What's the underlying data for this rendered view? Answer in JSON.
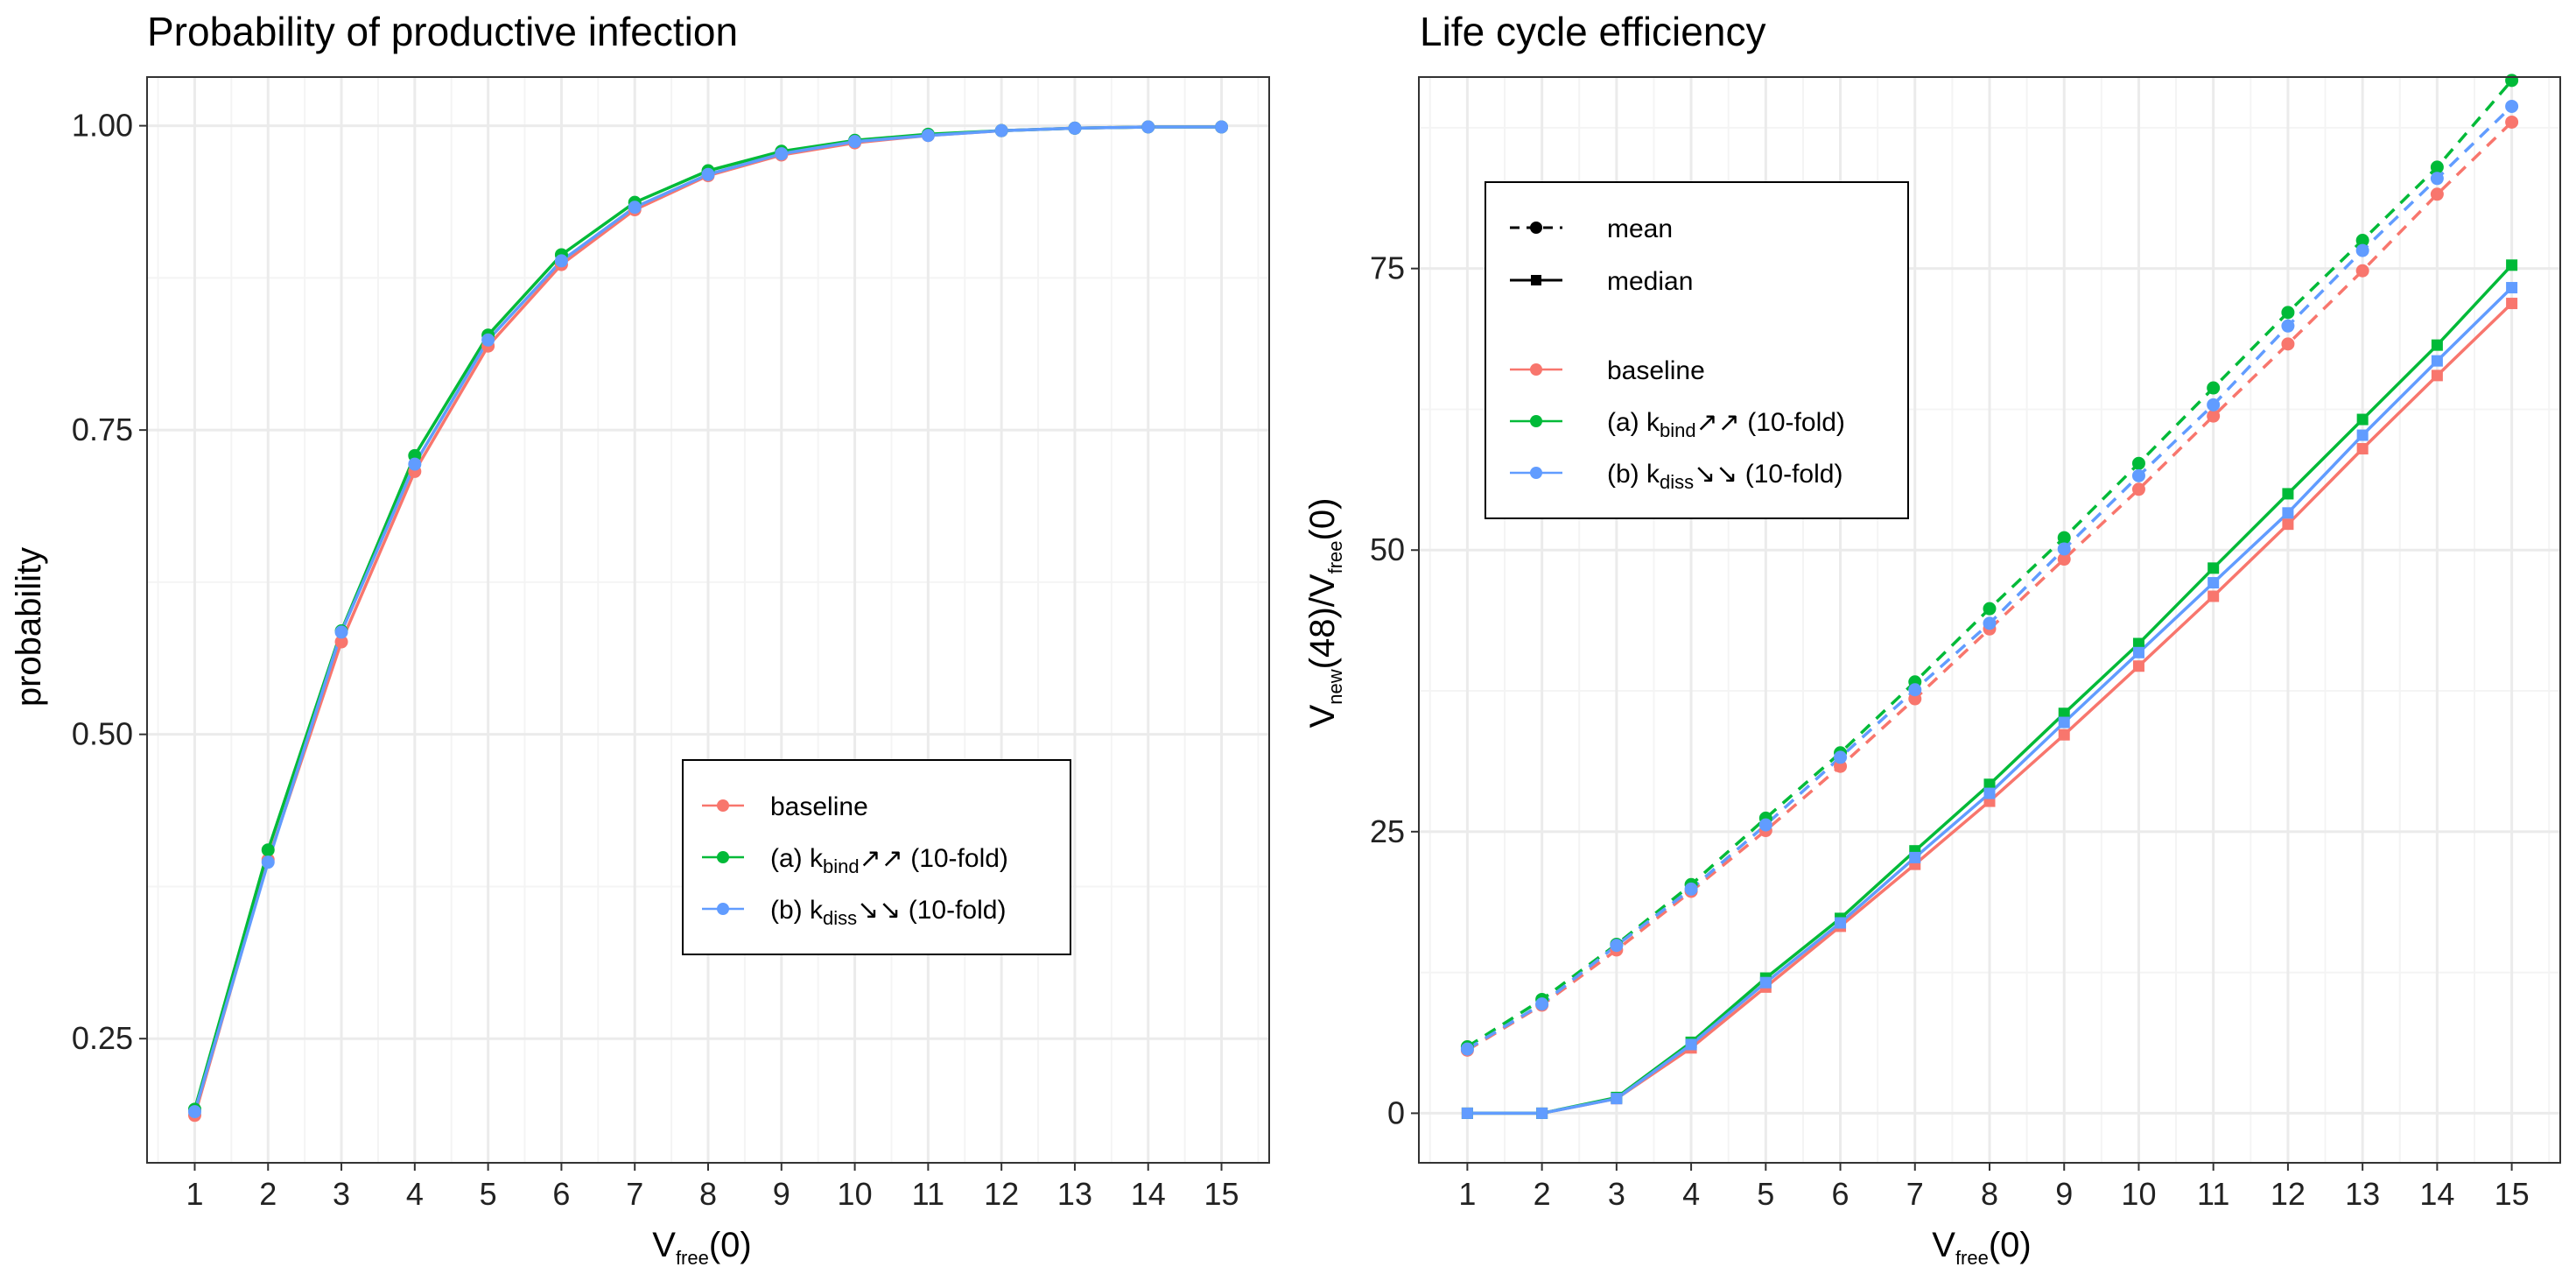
{
  "colors": {
    "baseline": "#F8766D",
    "kbind": "#00BA38",
    "kdiss": "#619CFF",
    "grid_major": "#EBEBEB",
    "grid_minor": "#F4F4F4",
    "panel_border": "#333333"
  },
  "chart_data": [
    {
      "type": "line",
      "title": "Probability of productive infection",
      "xlabel": {
        "main": "V",
        "sub": "free",
        "rest": "(0)"
      },
      "ylabel": "probability",
      "x": [
        1,
        2,
        3,
        4,
        5,
        6,
        7,
        8,
        9,
        10,
        11,
        12,
        13,
        14,
        15
      ],
      "xlim": [
        0.35,
        15.65
      ],
      "ylim": [
        0.148,
        1.04
      ],
      "yticks": [
        0.25,
        0.5,
        0.75,
        1.0
      ],
      "ytick_labels": [
        "0.25",
        "0.50",
        "0.75",
        "1.00"
      ],
      "grid": true,
      "legend": {
        "position": "center-right",
        "entries": [
          {
            "key": "baseline",
            "text": "baseline"
          },
          {
            "key": "kbind",
            "prefix": "(a) k",
            "sub": "bind",
            "suffix": "↗↗ (10-fold)"
          },
          {
            "key": "kdiss",
            "prefix": "(b) k",
            "sub": "diss",
            "suffix": "↘↘ (10-fold)"
          }
        ]
      },
      "series": [
        {
          "key": "baseline",
          "name": "baseline",
          "values": [
            0.187,
            0.397,
            0.576,
            0.716,
            0.819,
            0.886,
            0.931,
            0.959,
            0.976,
            0.986,
            0.992,
            0.996,
            0.998,
            0.999,
            0.999
          ]
        },
        {
          "key": "kbind",
          "name": "(a) kbind↗↗ (10-fold)",
          "values": [
            0.192,
            0.405,
            0.585,
            0.729,
            0.828,
            0.894,
            0.937,
            0.963,
            0.979,
            0.988,
            0.993,
            0.996,
            0.998,
            0.999,
            0.999
          ]
        },
        {
          "key": "kdiss",
          "name": "(b) kdiss↘↘ (10-fold)",
          "values": [
            0.19,
            0.395,
            0.584,
            0.722,
            0.824,
            0.889,
            0.933,
            0.96,
            0.977,
            0.987,
            0.992,
            0.996,
            0.998,
            0.999,
            0.999
          ]
        }
      ]
    },
    {
      "type": "line",
      "title": "Life cycle efficiency",
      "xlabel": {
        "main": "V",
        "sub": "free",
        "rest": "(0)"
      },
      "ylabel": {
        "p1": "V",
        "s1": "new",
        "p2": "(48)/V",
        "s2": "free",
        "p3": "(0)"
      },
      "x": [
        1,
        2,
        3,
        4,
        5,
        6,
        7,
        8,
        9,
        10,
        11,
        12,
        13,
        14,
        15
      ],
      "xlim": [
        0.35,
        15.65
      ],
      "ylim": [
        -4.4,
        92.0
      ],
      "yticks": [
        0,
        25,
        50,
        75
      ],
      "ytick_labels": [
        "0",
        "25",
        "50",
        "75"
      ],
      "grid": true,
      "legend": {
        "position": "top-left",
        "line_entries": [
          {
            "text": "mean",
            "style": "dashed",
            "marker": "circle"
          },
          {
            "text": "median",
            "style": "solid",
            "marker": "square"
          }
        ],
        "entries": [
          {
            "key": "baseline",
            "text": "baseline"
          },
          {
            "key": "kbind",
            "prefix": "(a) k",
            "sub": "bind",
            "suffix": "↗↗ (10-fold)"
          },
          {
            "key": "kdiss",
            "prefix": "(b) k",
            "sub": "diss",
            "suffix": "↘↘ (10-fold)"
          }
        ]
      },
      "series": [
        {
          "key": "baseline",
          "stat": "mean",
          "values": [
            5.6,
            9.6,
            14.5,
            19.7,
            25.1,
            30.8,
            36.8,
            43.0,
            49.2,
            55.4,
            61.9,
            68.3,
            74.8,
            81.6,
            88.0
          ]
        },
        {
          "key": "kbind",
          "stat": "mean",
          "values": [
            5.9,
            10.1,
            15.0,
            20.3,
            26.2,
            32.0,
            38.3,
            44.8,
            51.1,
            57.7,
            64.4,
            71.1,
            77.5,
            84.0,
            91.7
          ]
        },
        {
          "key": "kdiss",
          "stat": "mean",
          "values": [
            5.7,
            9.7,
            14.9,
            19.9,
            25.6,
            31.6,
            37.6,
            43.5,
            50.1,
            56.6,
            62.9,
            69.9,
            76.6,
            83.0,
            89.4
          ]
        },
        {
          "key": "baseline",
          "stat": "median",
          "values": [
            0,
            0,
            1.3,
            5.8,
            11.2,
            16.6,
            22.1,
            27.7,
            33.6,
            39.7,
            45.9,
            52.3,
            59.0,
            65.5,
            71.9
          ]
        },
        {
          "key": "kbind",
          "stat": "median",
          "values": [
            0,
            0,
            1.4,
            6.3,
            12.0,
            17.3,
            23.3,
            29.2,
            35.5,
            41.7,
            48.4,
            55.0,
            61.6,
            68.2,
            75.3
          ]
        },
        {
          "key": "kdiss",
          "stat": "median",
          "values": [
            0,
            0,
            1.3,
            6.1,
            11.6,
            16.9,
            22.7,
            28.4,
            34.7,
            40.9,
            47.1,
            53.3,
            60.2,
            66.8,
            73.3
          ]
        }
      ]
    }
  ]
}
